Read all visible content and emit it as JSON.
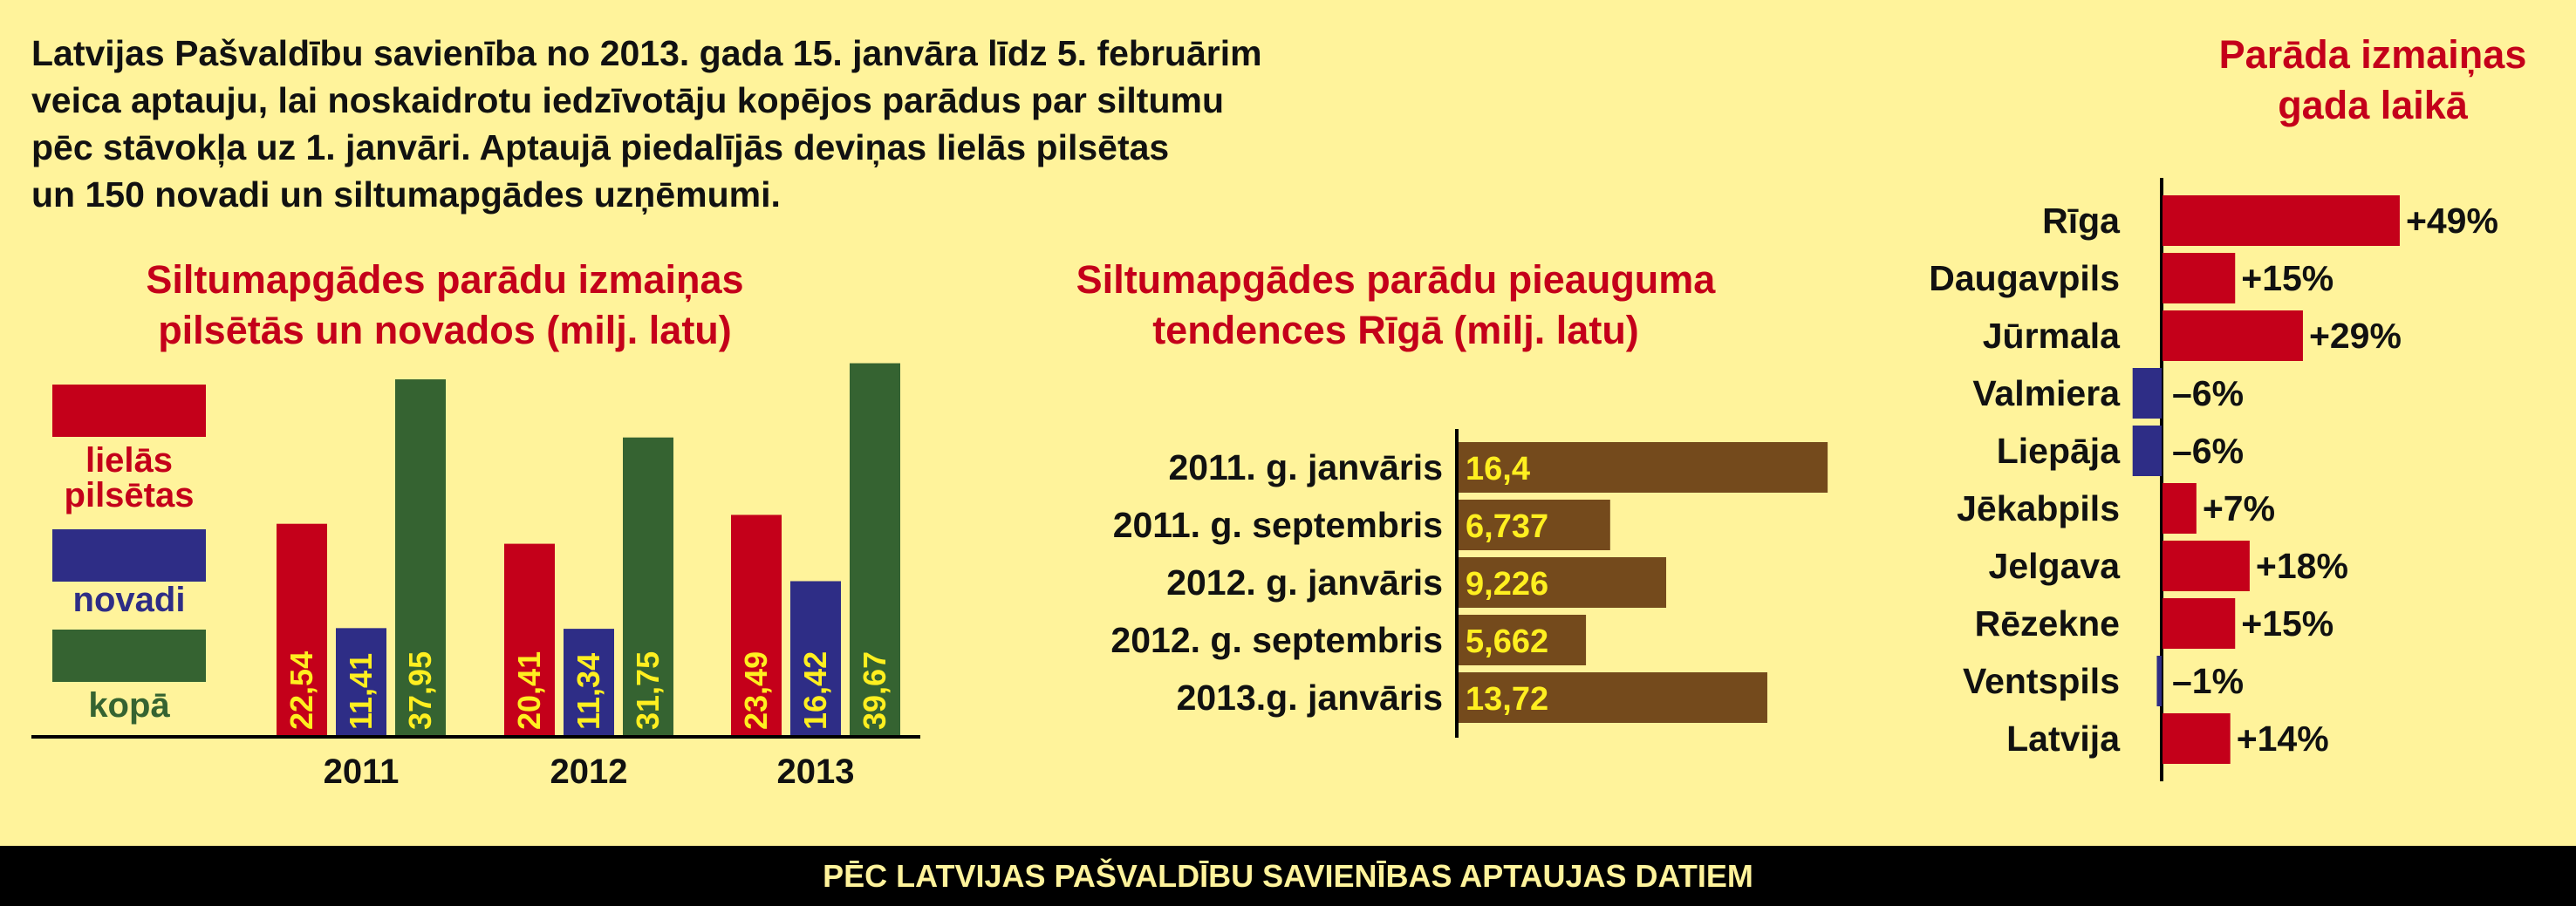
{
  "intro": {
    "lines": [
      "Latvijas Pašvaldību savienība no 2013. gada 15. janvāra līdz 5. februārim",
      "veica aptauju, lai noskaidrotu iedzīvotāju kopējos parādus par siltumu",
      "pēc stāvokļa uz 1. janvāri. Aptaujā piedalījās deviņas lielās pilsētas",
      "un 150 novadi un siltumapgādes uzņēmumi."
    ]
  },
  "footer": "PĒC LATVIJAS PAŠVALDĪBU SAVIENĪBAS APTAUJAS DATIEM",
  "colors": {
    "background": "#fff39b",
    "red": "#c4001a",
    "blue": "#2e2d86",
    "green": "#356331",
    "brown": "#744a1c",
    "yellow_label": "#ffef20"
  },
  "chart_data": [
    {
      "type": "bar",
      "title": "Siltumapgādes parādu izmaiņas pilsētās un novados (milj. latu)",
      "title_lines": [
        "Siltumapgādes parādu izmaiņas",
        "pilsētās un novados (milj. latu)"
      ],
      "categories": [
        "2011",
        "2012",
        "2013"
      ],
      "series": [
        {
          "name": "lielās pilsētas",
          "name_lines": [
            "lielās",
            "pilsētas"
          ],
          "color": "#c4001a",
          "values": [
            22.54,
            20.41,
            23.49
          ],
          "labels": [
            "22,54",
            "20,41",
            "23,49"
          ]
        },
        {
          "name": "novadi",
          "name_lines": [
            "novadi"
          ],
          "color": "#2e2d86",
          "values": [
            11.41,
            11.34,
            16.42
          ],
          "labels": [
            "11,41",
            "11,34",
            "16,42"
          ]
        },
        {
          "name": "kopā",
          "name_lines": [
            "kopā"
          ],
          "color": "#356331",
          "values": [
            37.95,
            31.75,
            39.67
          ],
          "labels": [
            "37,95",
            "31,75",
            "39,67"
          ]
        }
      ],
      "legend": "left",
      "grid": false
    },
    {
      "type": "bar",
      "orientation": "horizontal",
      "title": "Siltumapgādes parādu pieauguma tendences Rīgā (milj. latu)",
      "title_lines": [
        "Siltumapgādes parādu pieauguma",
        "tendences Rīgā (milj. latu)"
      ],
      "categories": [
        "2011. g. janvāris",
        "2011. g. septembris",
        "2012. g. janvāris",
        "2012. g. septembris",
        "2013.g. janvāris"
      ],
      "values": [
        16.4,
        6.737,
        9.226,
        5.662,
        13.72
      ],
      "labels": [
        "16,4",
        "6,737",
        "9,226",
        "5,662",
        "13,72"
      ],
      "color": "#744a1c",
      "grid": false
    },
    {
      "type": "bar",
      "orientation": "horizontal",
      "title": "Parāda izmaiņas gada laikā",
      "title_lines": [
        "Parāda izmaiņas",
        "gada laikā"
      ],
      "categories": [
        "Rīga",
        "Daugavpils",
        "Jūrmala",
        "Valmiera",
        "Liepāja",
        "Jēkabpils",
        "Jelgava",
        "Rēzekne",
        "Ventspils",
        "Latvija"
      ],
      "values": [
        49,
        15,
        29,
        -6,
        -6,
        7,
        18,
        15,
        -1,
        14
      ],
      "labels": [
        "+49%",
        "+15%",
        "+29%",
        "–6%",
        "–6%",
        "+7%",
        "+18%",
        "+15%",
        "–1%",
        "+14%"
      ],
      "grid": false
    }
  ]
}
